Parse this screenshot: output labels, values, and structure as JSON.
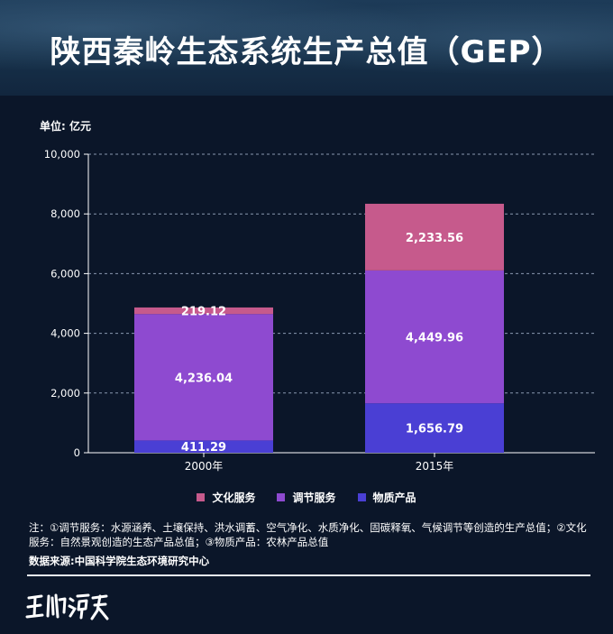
{
  "title": "陕西秦岭生态系统生产总值（GEP）",
  "unit_label": "单位: 亿元",
  "colors": {
    "cultural": "#c65a8c",
    "regulating": "#8e4ad0",
    "material": "#4a3fd4",
    "grid": "#8a98b0",
    "axis": "#ffffff"
  },
  "chart_data": {
    "type": "bar",
    "stacked": true,
    "categories": [
      "2000年",
      "2015年"
    ],
    "series": [
      {
        "name": "物质产品",
        "values": [
          411.29,
          1656.79
        ],
        "labels": [
          "411.29",
          "1,656.79"
        ],
        "color": "#4a3fd4"
      },
      {
        "name": "调节服务",
        "values": [
          4236.04,
          4449.96
        ],
        "labels": [
          "4,236.04",
          "4,449.96"
        ],
        "color": "#8e4ad0"
      },
      {
        "name": "文化服务",
        "values": [
          219.12,
          2233.56
        ],
        "labels": [
          "219.12",
          "2,233.56"
        ],
        "color": "#c65a8c"
      }
    ],
    "ylim": [
      0,
      10000
    ],
    "yticks": [
      0,
      2000,
      4000,
      6000,
      8000,
      10000
    ],
    "ytick_labels": [
      "0",
      "2,000",
      "4,000",
      "6,000",
      "8,000",
      "10,000"
    ],
    "grid": true,
    "legend_position": "bottom"
  },
  "legend": [
    {
      "label": "文化服务",
      "color": "#c65a8c"
    },
    {
      "label": "调节服务",
      "color": "#8e4ad0"
    },
    {
      "label": "物质产品",
      "color": "#4a3fd4"
    }
  ],
  "note": "注：①调节服务：水源涵养、土壤保持、洪水调蓄、空气净化、水质净化、固碳释氧、气候调节等创造的生产总值；②文化服务：自然景观创造的生态产品总值；③物质产品：农林产品总值",
  "source": "数据来源:中国科学院生态环境研究中心",
  "logo_text": "玉洲谭天"
}
